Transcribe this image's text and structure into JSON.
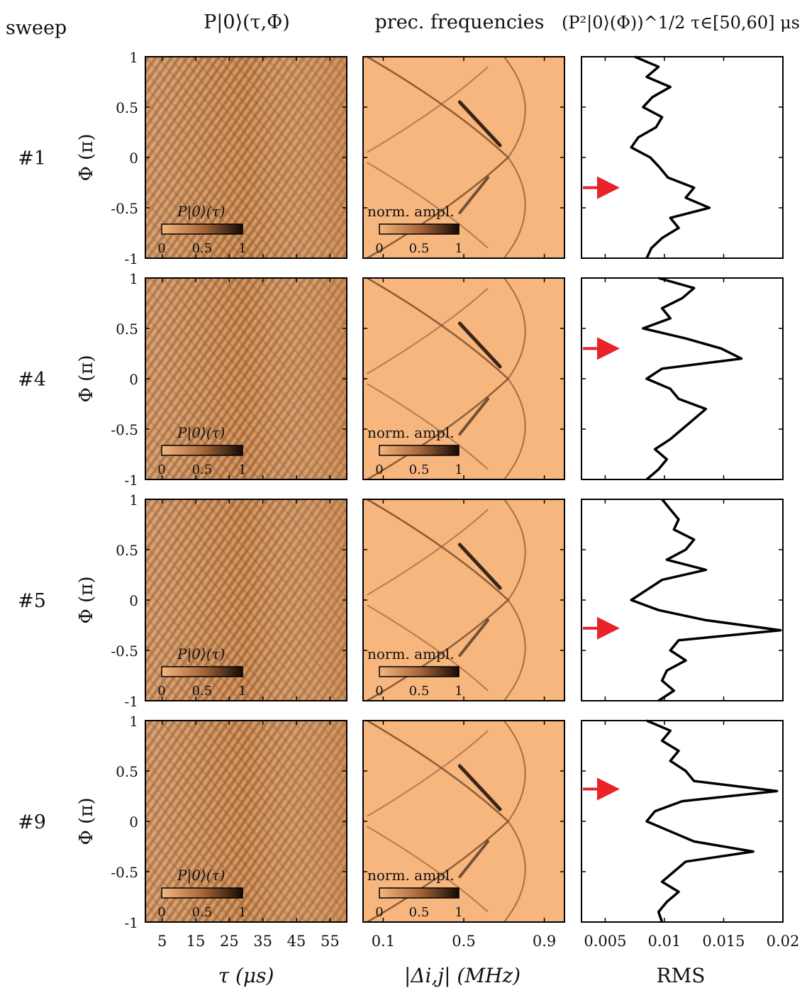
{
  "headers": {
    "sweep": "sweep",
    "col1": "P|0⟩(τ,Φ)",
    "col2": "prec. frequencies",
    "col3": "(P²|0⟩(Φ))^1/2 τ∈[50,60] μs"
  },
  "rows": [
    {
      "label": "#1",
      "arrow_phi": -0.3
    },
    {
      "label": "#4",
      "arrow_phi": 0.3
    },
    {
      "label": "#5",
      "arrow_phi": -0.28
    },
    {
      "label": "#9",
      "arrow_phi": 0.32
    }
  ],
  "y_axis": {
    "label": "Φ (π)",
    "ticks": [
      "1",
      "0.5",
      "0",
      "-0.5",
      "-1"
    ],
    "tick_values": [
      1,
      0.5,
      0,
      -0.5,
      -1
    ]
  },
  "x_axis_time": {
    "label": "τ (μs)",
    "ticks": [
      "5",
      "15",
      "25",
      "35",
      "45",
      "55"
    ],
    "tick_values": [
      5,
      15,
      25,
      35,
      45,
      55
    ],
    "range": [
      0,
      60
    ]
  },
  "x_axis_freq": {
    "label": "|Δi,j| (MHz)",
    "ticks": [
      "0.1",
      "0.5",
      "0.9"
    ],
    "tick_values": [
      0.1,
      0.5,
      0.9
    ],
    "range": [
      0,
      1
    ]
  },
  "x_axis_rms": {
    "label": "RMS",
    "ticks": [
      "0.005",
      "0.01",
      "0.015",
      "0.02"
    ],
    "tick_values": [
      0.005,
      0.01,
      0.015,
      0.02
    ],
    "range": [
      0.003,
      0.02
    ]
  },
  "colorbar_time": {
    "label": "P|0⟩(τ)",
    "ticks": [
      "0",
      "0.5",
      "1"
    ]
  },
  "colorbar_freq": {
    "label": "norm. ampl.",
    "ticks": [
      "0",
      "0.5",
      "1"
    ]
  },
  "colors": {
    "map_light": "#f6b67e",
    "map_mid": "#c98a55",
    "map_dark": "#140a05",
    "arrow": "#e8232a",
    "line": "#000000"
  },
  "chart_data": [
    {
      "type": "heatmap",
      "title": "P|0⟩(τ,Φ)",
      "xlabel": "τ (μs)",
      "ylabel": "Φ (π)",
      "xlim": [
        0,
        60
      ],
      "ylim": [
        -1,
        1
      ],
      "colorbar": "P|0⟩(τ)",
      "clim": [
        0,
        1
      ]
    },
    {
      "type": "heatmap",
      "title": "prec. frequencies",
      "xlabel": "|Δi,j| (MHz)",
      "ylabel": "Φ (π)",
      "xlim": [
        0,
        1
      ],
      "ylim": [
        -1,
        1
      ],
      "colorbar": "norm. ampl.",
      "clim": [
        0,
        1
      ]
    },
    {
      "type": "line",
      "title": "(P²|0⟩(Φ))^1/2 τ∈[50,60] μs",
      "xlabel": "RMS",
      "ylabel": "Φ (π)",
      "xlim": [
        0.003,
        0.02
      ],
      "ylim": [
        -1,
        1
      ],
      "series": [
        {
          "name": "#1",
          "phi": [
            1.0,
            0.9,
            0.8,
            0.7,
            0.6,
            0.5,
            0.4,
            0.3,
            0.2,
            0.1,
            0.0,
            -0.1,
            -0.2,
            -0.3,
            -0.4,
            -0.5,
            -0.6,
            -0.7,
            -0.8,
            -0.9,
            -1.0
          ],
          "rms": [
            0.0075,
            0.0095,
            0.0085,
            0.0105,
            0.009,
            0.0082,
            0.0098,
            0.0093,
            0.0078,
            0.0072,
            0.0088,
            0.0096,
            0.0103,
            0.0125,
            0.0118,
            0.0138,
            0.0105,
            0.0112,
            0.0098,
            0.0089,
            0.0085
          ]
        },
        {
          "name": "#4",
          "phi": [
            1.0,
            0.9,
            0.8,
            0.7,
            0.6,
            0.5,
            0.4,
            0.3,
            0.2,
            0.1,
            0.0,
            -0.1,
            -0.2,
            -0.3,
            -0.4,
            -0.5,
            -0.6,
            -0.7,
            -0.8,
            -0.9,
            -1.0
          ],
          "rms": [
            0.0095,
            0.0125,
            0.0115,
            0.0098,
            0.0105,
            0.0082,
            0.0118,
            0.0148,
            0.0165,
            0.0098,
            0.0085,
            0.0105,
            0.0112,
            0.0135,
            0.0125,
            0.0115,
            0.0105,
            0.0092,
            0.0102,
            0.0095,
            0.0085
          ]
        },
        {
          "name": "#5",
          "phi": [
            1.0,
            0.9,
            0.8,
            0.7,
            0.6,
            0.5,
            0.4,
            0.3,
            0.2,
            0.1,
            0.0,
            -0.1,
            -0.2,
            -0.3,
            -0.4,
            -0.5,
            -0.6,
            -0.7,
            -0.8,
            -0.9,
            -1.0
          ],
          "rms": [
            0.0098,
            0.0105,
            0.0112,
            0.0108,
            0.0125,
            0.0118,
            0.0102,
            0.0135,
            0.0098,
            0.0085,
            0.0072,
            0.0095,
            0.0135,
            0.0198,
            0.0112,
            0.0105,
            0.0118,
            0.0102,
            0.0098,
            0.0108,
            0.0095
          ]
        },
        {
          "name": "#9",
          "phi": [
            1.0,
            0.9,
            0.8,
            0.7,
            0.6,
            0.5,
            0.4,
            0.3,
            0.2,
            0.1,
            0.0,
            -0.1,
            -0.2,
            -0.3,
            -0.4,
            -0.5,
            -0.6,
            -0.7,
            -0.8,
            -0.9,
            -1.0
          ],
          "rms": [
            0.0085,
            0.0105,
            0.0098,
            0.0112,
            0.0105,
            0.0118,
            0.0125,
            0.0195,
            0.0115,
            0.0092,
            0.0085,
            0.0105,
            0.0125,
            0.0175,
            0.0118,
            0.0108,
            0.0098,
            0.0112,
            0.0102,
            0.0095,
            0.0098
          ]
        }
      ]
    }
  ]
}
